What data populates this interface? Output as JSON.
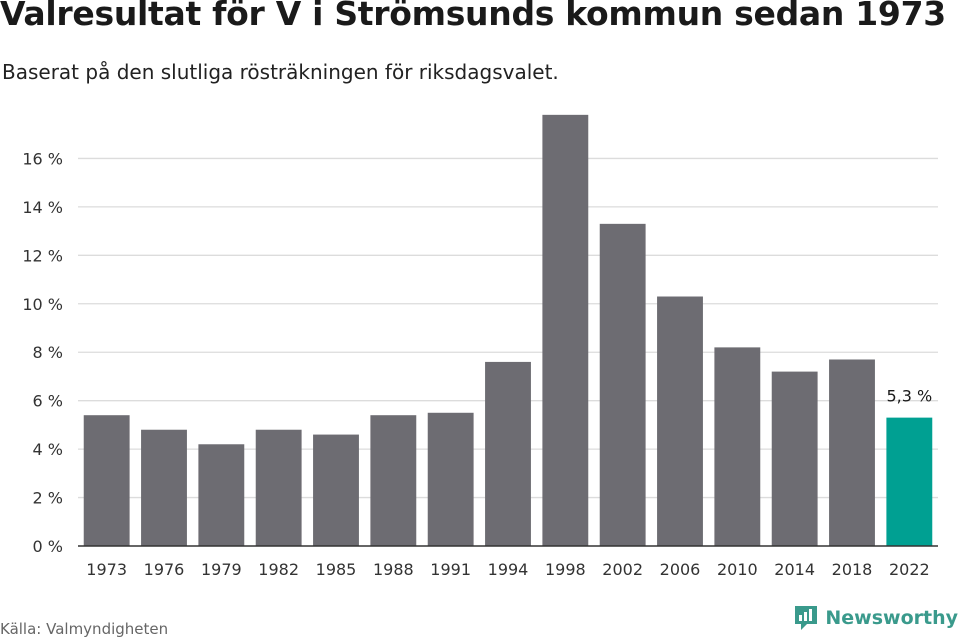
{
  "title": "Valresultat för V i Strömsunds kommun sedan 1973",
  "subtitle": "Baserat på den slutliga rösträkningen för riksdagsvalet.",
  "source": "Källa: Valmyndigheten",
  "brand": {
    "label": "Newsworthy",
    "icon": "newsworthy-logo-icon"
  },
  "colors": {
    "bar": "#6d6c72",
    "highlight": "#00a092",
    "grid": "#dcdcdc",
    "axis": "#333333",
    "brand": "#3a9a8c"
  },
  "chart_data": {
    "type": "bar",
    "categories": [
      "1973",
      "1976",
      "1979",
      "1982",
      "1985",
      "1988",
      "1991",
      "1994",
      "1998",
      "2002",
      "2006",
      "2010",
      "2014",
      "2018",
      "2022"
    ],
    "values": [
      5.4,
      4.8,
      4.2,
      4.8,
      4.6,
      5.4,
      5.5,
      7.6,
      17.8,
      13.3,
      10.3,
      8.2,
      7.2,
      7.7,
      5.3
    ],
    "highlight_index": 14,
    "annotation": "5,3 %",
    "yticks": [
      "0 %",
      "2 %",
      "4 %",
      "6 %",
      "8 %",
      "10 %",
      "12 %",
      "14 %",
      "16 %"
    ],
    "ylim": [
      0,
      18
    ],
    "grid": true,
    "legend": "none"
  }
}
